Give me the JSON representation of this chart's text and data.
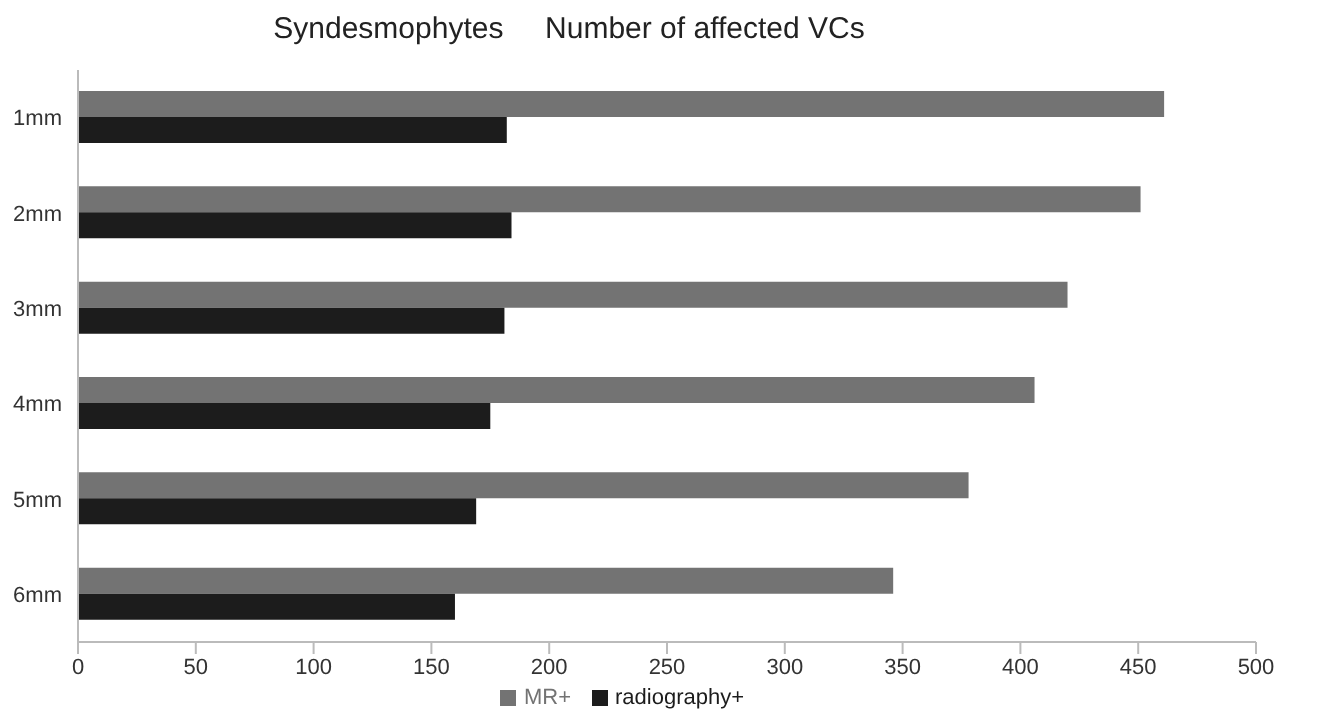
{
  "chart_data": {
    "type": "bar",
    "orientation": "horizontal",
    "title": "Syndesmophytes     Number of affected VCs",
    "categories": [
      "1mm",
      "2mm",
      "3mm",
      "4mm",
      "5mm",
      "6mm"
    ],
    "series": [
      {
        "name": "MR+",
        "color": "#737373",
        "values": [
          461,
          451,
          420,
          406,
          378,
          346
        ]
      },
      {
        "name": "radiography+",
        "color": "#1c1c1c",
        "values": [
          182,
          184,
          181,
          175,
          169,
          160
        ]
      }
    ],
    "xlim": [
      0,
      500
    ],
    "xticks": [
      0,
      50,
      100,
      150,
      200,
      250,
      300,
      350,
      400,
      450,
      500
    ],
    "grid": false,
    "legend": "bottom"
  }
}
